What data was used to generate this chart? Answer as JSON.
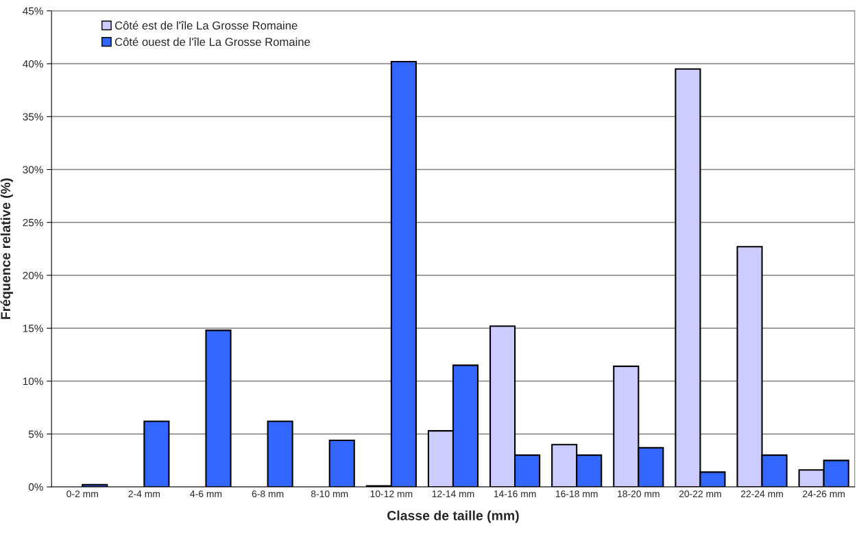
{
  "chart_data": {
    "type": "bar",
    "xlabel": "Classe de taille (mm)",
    "ylabel": "Fréquence relative (%)",
    "categories": [
      "0-2 mm",
      "2-4 mm",
      "4-6 mm",
      "6-8 mm",
      "8-10 mm",
      "10-12 mm",
      "12-14 mm",
      "14-16 mm",
      "16-18 mm",
      "18-20 mm",
      "20-22 mm",
      "22-24 mm",
      "24-26 mm"
    ],
    "series": [
      {
        "name": "Côté est de l'île La Grosse Romaine",
        "color": "#ccccff",
        "values": [
          null,
          null,
          null,
          null,
          null,
          0.1,
          5.3,
          15.2,
          4.0,
          11.4,
          39.5,
          22.7,
          1.6
        ]
      },
      {
        "name": "Côté ouest de l'île La Grosse Romaine",
        "color": "#3366ff",
        "values": [
          0.2,
          6.2,
          14.8,
          6.2,
          4.4,
          40.2,
          11.5,
          3.0,
          3.0,
          3.7,
          1.4,
          3.0,
          2.5
        ]
      }
    ],
    "ylim": [
      0,
      45
    ],
    "yticks": [
      {
        "value": 0,
        "label": "0%"
      },
      {
        "value": 5,
        "label": "5%"
      },
      {
        "value": 10,
        "label": "10%"
      },
      {
        "value": 15,
        "label": "15%"
      },
      {
        "value": 20,
        "label": "20%"
      },
      {
        "value": 25,
        "label": "25%"
      },
      {
        "value": 30,
        "label": "30%"
      },
      {
        "value": 35,
        "label": "35%"
      },
      {
        "value": 40,
        "label": "40%"
      },
      {
        "value": 45,
        "label": "45%"
      }
    ],
    "grid": "y",
    "legend": "top left"
  }
}
